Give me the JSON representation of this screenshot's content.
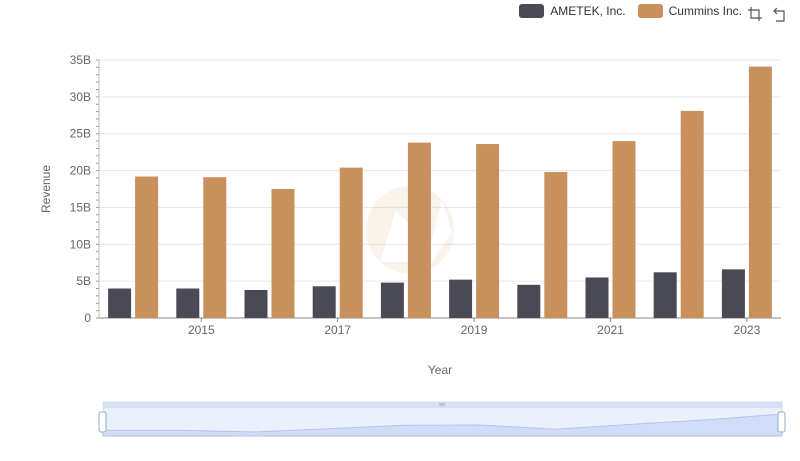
{
  "chart_data": {
    "type": "bar",
    "categories": [
      "2014",
      "2015",
      "2016",
      "2017",
      "2018",
      "2019",
      "2020",
      "2021",
      "2022",
      "2023"
    ],
    "x_tick_labels": [
      "2015",
      "2017",
      "2019",
      "2021",
      "2023"
    ],
    "series": [
      {
        "name": "AMETEK, Inc.",
        "color": "#4a4a56",
        "values": [
          4.0,
          4.0,
          3.8,
          4.3,
          4.8,
          5.2,
          4.5,
          5.5,
          6.2,
          6.6
        ]
      },
      {
        "name": "Cummins Inc.",
        "color": "#c8905c",
        "values": [
          19.2,
          19.1,
          17.5,
          20.4,
          23.8,
          23.6,
          19.8,
          24.0,
          28.1,
          34.1
        ]
      }
    ],
    "xlabel": "Year",
    "ylabel": "Revenue",
    "ylim": [
      0,
      35
    ],
    "y_ticks": [
      0,
      5,
      10,
      15,
      20,
      25,
      30,
      35
    ],
    "y_tick_labels": [
      "0",
      "5B",
      "10B",
      "15B",
      "20B",
      "25B",
      "30B",
      "35B"
    ],
    "legend_position": "top-right",
    "grid": true
  }
}
